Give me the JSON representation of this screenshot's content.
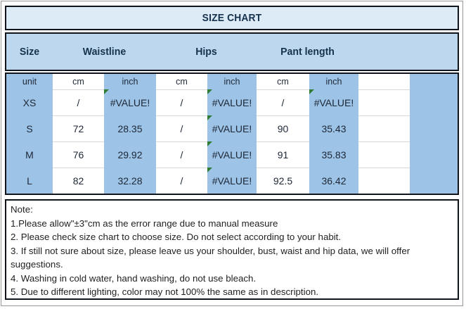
{
  "title": {
    "text": "SIZE CHART"
  },
  "header": {
    "size": "Size",
    "waistline": "Waistline",
    "hips": "Hips",
    "pant_length": "Pant length"
  },
  "table": {
    "unit_row": [
      "unit",
      "cm",
      "inch",
      "cm",
      "inch",
      "cm",
      "inch",
      "",
      ""
    ],
    "rows": [
      {
        "size": "XS",
        "cells": [
          "/",
          "#VALUE!",
          "/",
          "#VALUE!",
          "/",
          "#VALUE!"
        ]
      },
      {
        "size": "S",
        "cells": [
          "72",
          "28.35",
          "/",
          "#VALUE!",
          "90",
          "35.43"
        ]
      },
      {
        "size": "M",
        "cells": [
          "76",
          "29.92",
          "/",
          "#VALUE!",
          "91",
          "35.83"
        ]
      },
      {
        "size": "L",
        "cells": [
          "82",
          "32.28",
          "/",
          "#VALUE!",
          "92.5",
          "36.42"
        ]
      }
    ],
    "error_value": "#VALUE!"
  },
  "notes": {
    "label": "Note:",
    "lines": [
      "1.Please allow\"±3\"cm as the error range due to manual measure",
      "2. Please check size chart to choose size. Do not select according to your habit.",
      "3. If still not sure about size, please leave us your shoulder, bust, waist and hip data, we will offer suggestions.",
      "4. Washing in cold water, hand washing, do not use bleach.",
      "5. Due to different lighting, color may not 100% the same as in description."
    ]
  },
  "colors": {
    "title_bg": "#ddebf7",
    "header_bg": "#bdd7ee",
    "cell_blue": "#9dc3e6",
    "border_dark": "#10151c",
    "text_navy": "#16324c",
    "error_indicator_green": "#2e7d32"
  },
  "icons": {
    "error_triangle": "excel-error-indicator-triangle"
  }
}
